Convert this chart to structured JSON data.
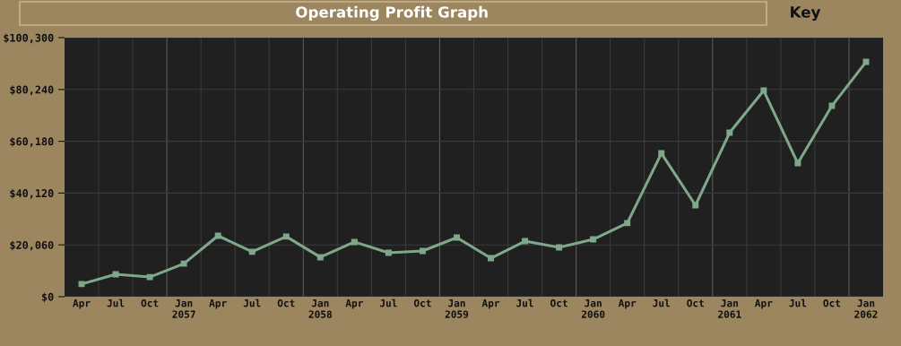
{
  "chart_data": {
    "type": "line",
    "title": "Operating Profit Graph",
    "annotations": [
      "Key"
    ],
    "categories": [
      "Apr",
      "Jul",
      "Oct",
      "Jan\n2057",
      "Apr",
      "Jul",
      "Oct",
      "Jan\n2058",
      "Apr",
      "Jul",
      "Oct",
      "Jan\n2059",
      "Apr",
      "Jul",
      "Oct",
      "Jan\n2060",
      "Apr",
      "Jul",
      "Oct",
      "Jan\n2061",
      "Apr",
      "Jul",
      "Oct",
      "Jan\n2062"
    ],
    "series": [
      {
        "color": "#7fa88a",
        "values": [
          4900,
          8700,
          7600,
          12800,
          23600,
          17400,
          23300,
          15300,
          21200,
          17000,
          17700,
          22900,
          14900,
          21500,
          19100,
          22200,
          28500,
          55500,
          35400,
          63500,
          79800,
          51700,
          73900,
          90900
        ]
      }
    ],
    "ylim": [
      0,
      100300
    ],
    "yticks": [
      {
        "value": 0,
        "label": "$0"
      },
      {
        "value": 20060,
        "label": "$20,060"
      },
      {
        "value": 40120,
        "label": "$40,120"
      },
      {
        "value": 60180,
        "label": "$60,180"
      },
      {
        "value": 80240,
        "label": "$80,240"
      },
      {
        "value": 100300,
        "label": "$100,300"
      }
    ],
    "grid": true,
    "marker": "square",
    "line_style": "solid"
  }
}
